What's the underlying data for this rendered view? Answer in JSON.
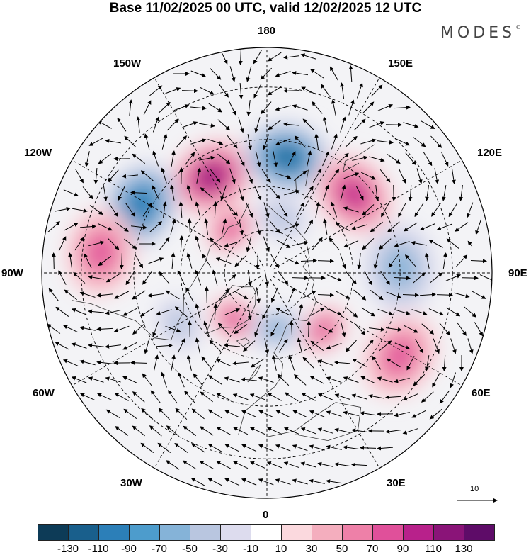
{
  "title": "Base 11/02/2025 00 UTC, valid 12/02/2025 12 UTC",
  "brand": "MODES",
  "brand_mark": "©",
  "longitude_labels": {
    "top": "180",
    "bottom": "0",
    "left": "90W",
    "right": "90E",
    "upper_left_1": "150W",
    "upper_left_2": "120W",
    "lower_left_1": "60W",
    "lower_left_2": "30W",
    "upper_right_1": "150E",
    "upper_right_2": "120E",
    "lower_right_1": "60E",
    "lower_right_2": "30E"
  },
  "vector_scale_label": "10",
  "colorbar": {
    "ticks": [
      "-130",
      "-110",
      "-90",
      "-70",
      "-50",
      "-30",
      "-10",
      "10",
      "30",
      "50",
      "70",
      "90",
      "110",
      "130"
    ],
    "colors": [
      "#0d3b57",
      "#195f8c",
      "#2c7fb8",
      "#4d9ccc",
      "#85b3d8",
      "#b9c6e0",
      "#dddcee",
      "#ffffff",
      "#fbd9de",
      "#f4aebe",
      "#ee80a8",
      "#e0509a",
      "#b8218b",
      "#8a1478",
      "#5e0c68"
    ]
  },
  "anomalies": [
    {
      "lon": -150,
      "lat": 52,
      "value": 115,
      "shape": "oval"
    },
    {
      "lon": 170,
      "lat": 50,
      "value": -130,
      "shape": "oval"
    },
    {
      "lon": 132,
      "lat": 50,
      "value": 105,
      "shape": "oval"
    },
    {
      "lon": -118,
      "lat": 42,
      "value": -110,
      "shape": "oval"
    },
    {
      "lon": -140,
      "lat": 70,
      "value": 85,
      "shape": "small"
    },
    {
      "lon": 165,
      "lat": 70,
      "value": -45,
      "shape": "small"
    },
    {
      "lon": -97,
      "lat": 35,
      "value": 85,
      "shape": "oval"
    },
    {
      "lon": 92,
      "lat": 45,
      "value": -55,
      "shape": "oval"
    },
    {
      "lon": 45,
      "lat": 62,
      "value": 75,
      "shape": "small"
    },
    {
      "lon": 58,
      "lat": 38,
      "value": 70,
      "shape": "oval"
    },
    {
      "lon": -35,
      "lat": 70,
      "value": 85,
      "shape": "small"
    },
    {
      "lon": 10,
      "lat": 70,
      "value": -55,
      "shape": "small"
    },
    {
      "lon": -60,
      "lat": 55,
      "value": -35,
      "shape": "small"
    }
  ]
}
